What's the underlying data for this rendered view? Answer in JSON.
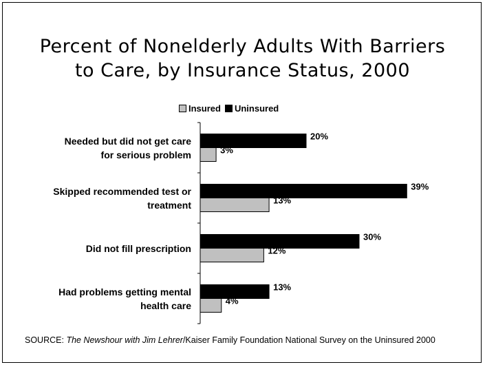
{
  "title_lines": [
    "Percent of Nonelderly Adults With Barriers",
    "to Care, by Insurance Status, 2000"
  ],
  "source": {
    "prefix": "SOURCE: ",
    "italic": "The Newshour with Jim Lehrer",
    "rest": "/Kaiser Family Foundation National Survey on the Uninsured 2000"
  },
  "colors": {
    "insured": "#c0c0c0",
    "uninsured": "#000000"
  },
  "chart_data": {
    "type": "bar",
    "orientation": "horizontal",
    "title": "Percent of Nonelderly Adults With Barriers to Care, by Insurance Status, 2000",
    "categories": [
      [
        "Needed but did not get care",
        "for serious problem"
      ],
      [
        "Skipped recommended test or",
        "treatment"
      ],
      [
        "Did not fill prescription"
      ],
      [
        "Had problems getting mental",
        "health care"
      ]
    ],
    "series": [
      {
        "name": "Uninsured",
        "values": [
          20,
          39,
          30,
          13
        ],
        "labels": [
          "20%",
          "39%",
          "30%",
          "13%"
        ]
      },
      {
        "name": "Insured",
        "values": [
          3,
          13,
          12,
          4
        ],
        "labels": [
          "3%",
          "13%",
          "12%",
          "4%"
        ]
      }
    ],
    "legend": [
      "Insured",
      "Uninsured"
    ],
    "legend_position": "top",
    "xlim": [
      0,
      40
    ],
    "grid": false
  }
}
